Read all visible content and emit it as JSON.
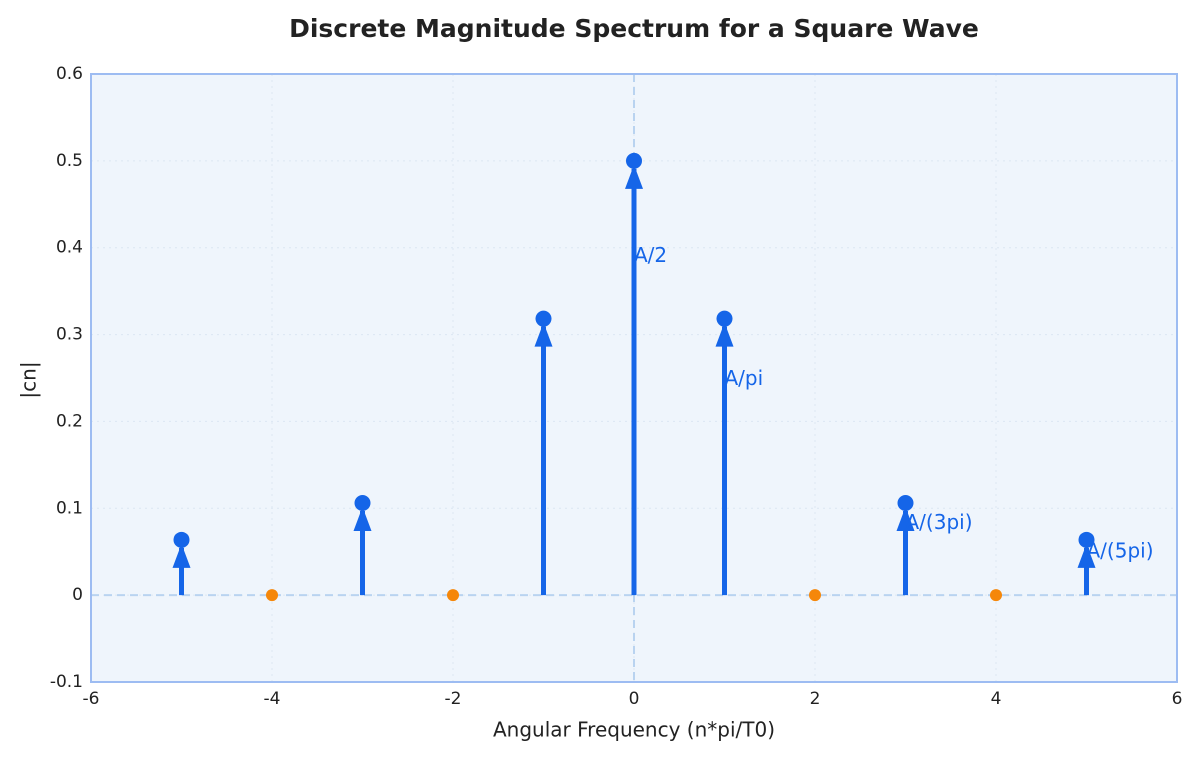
{
  "chart_data": {
    "type": "stem",
    "title": "Discrete Magnitude Spectrum for a Square Wave",
    "xlabel": "Angular Frequency (n*pi/T0)",
    "ylabel": "|cn|",
    "x": [
      -5,
      -4,
      -3,
      -2,
      -1,
      0,
      1,
      2,
      3,
      4,
      5
    ],
    "series": [
      {
        "color": "#1565e8",
        "values": [
          0.0637,
          null,
          0.1061,
          null,
          0.3183,
          0.5,
          0.3183,
          null,
          0.1061,
          null,
          0.0637
        ]
      },
      {
        "color": "#f5870a",
        "values": [
          null,
          0,
          null,
          0,
          null,
          null,
          null,
          0,
          null,
          0,
          null
        ]
      }
    ],
    "annotations": [
      {
        "text": "A/2",
        "x": 0
      },
      {
        "text": "A/pi",
        "x": 1
      },
      {
        "text": "A/(3pi)",
        "x": 3
      },
      {
        "text": "A/(5pi)",
        "x": 5
      }
    ],
    "xlim": [
      -6,
      6
    ],
    "xticks": [
      -6,
      -4,
      -2,
      0,
      2,
      4,
      6
    ],
    "ylim": [
      -0.1,
      0.6
    ],
    "yticks": [
      -0.1,
      0,
      0.1,
      0.2,
      0.3,
      0.4,
      0.5,
      0.6
    ],
    "grid": true
  }
}
